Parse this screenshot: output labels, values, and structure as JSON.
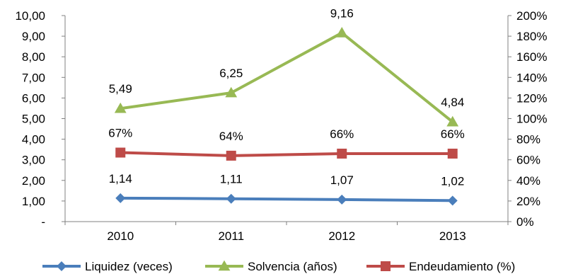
{
  "chart_data": {
    "type": "line",
    "categories": [
      "2010",
      "2011",
      "2012",
      "2013"
    ],
    "left_axis": {
      "ylim": [
        0,
        10
      ],
      "ticks": [
        0,
        1,
        2,
        3,
        4,
        5,
        6,
        7,
        8,
        9,
        10
      ],
      "tick_labels": [
        "-",
        "1,00",
        "2,00",
        "3,00",
        "4,00",
        "5,00",
        "6,00",
        "7,00",
        "8,00",
        "9,00",
        "10,00"
      ]
    },
    "right_axis": {
      "ylim": [
        0,
        200
      ],
      "ticks": [
        0,
        20,
        40,
        60,
        80,
        100,
        120,
        140,
        160,
        180,
        200
      ],
      "tick_labels": [
        "0%",
        "20%",
        "40%",
        "60%",
        "80%",
        "100%",
        "120%",
        "140%",
        "160%",
        "180%",
        "200%"
      ]
    },
    "grid": false,
    "legend_position": "bottom",
    "series": [
      {
        "name": "Liquidez (veces)",
        "axis": "left",
        "marker": "diamond",
        "color": "#4a7ebb",
        "values": [
          1.14,
          1.11,
          1.07,
          1.02
        ],
        "labels": [
          "1,14",
          "1,11",
          "1,07",
          "1,02"
        ]
      },
      {
        "name": "Solvencia (años)",
        "axis": "left",
        "marker": "triangle",
        "color": "#98b954",
        "values": [
          5.49,
          6.25,
          9.16,
          4.84
        ],
        "labels": [
          "5,49",
          "6,25",
          "9,16",
          "4,84"
        ]
      },
      {
        "name": "Endeudamiento (%)",
        "axis": "right",
        "marker": "square",
        "color": "#be4b48",
        "values": [
          67,
          64,
          66,
          66
        ],
        "labels": [
          "67%",
          "64%",
          "66%",
          "66%"
        ]
      }
    ]
  }
}
